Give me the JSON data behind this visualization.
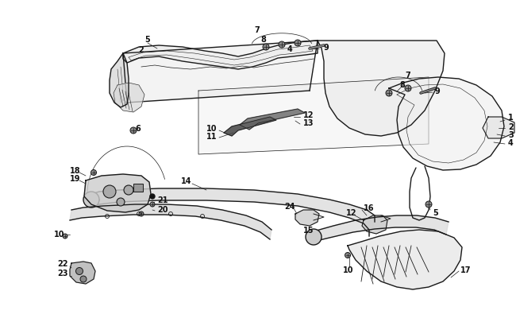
{
  "bg_color": "#ffffff",
  "line_color": "#1a1a1a",
  "fig_width": 6.5,
  "fig_height": 4.06,
  "dpi": 100
}
